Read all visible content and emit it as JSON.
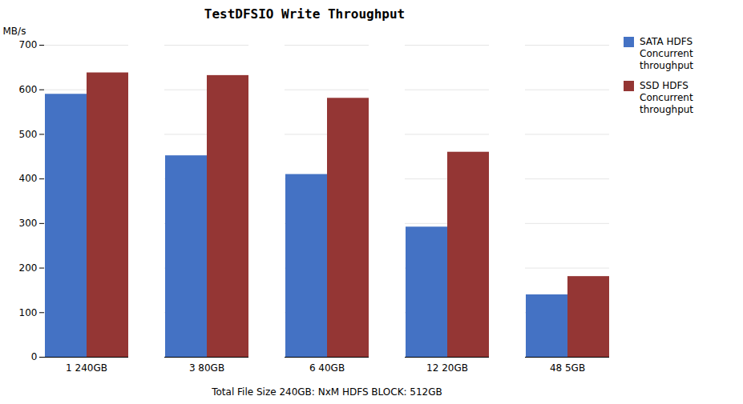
{
  "chart_data": {
    "type": "bar",
    "title": "TestDFSIO Write Throughput",
    "xlabel": "Total File Size 240GB: NxM HDFS BLOCK: 512GB",
    "ylabel": "MB/s",
    "categories": [
      "1 240GB",
      "3 80GB",
      "6 40GB",
      "12 20GB",
      "48 5GB"
    ],
    "series": [
      {
        "name": "SATA HDFS\nConcurrent\nthroughput",
        "color": "#4472C4",
        "values": [
          590,
          452,
          410,
          292,
          140
        ]
      },
      {
        "name": "SSD HDFS\nConcurrent\nthroughput",
        "color": "#943634",
        "values": [
          638,
          632,
          581,
          460,
          181
        ]
      }
    ],
    "ylim": [
      0,
      700
    ],
    "yticks": [
      0,
      100,
      200,
      300,
      400,
      500,
      600,
      700
    ],
    "grid": true,
    "legend": "right"
  }
}
